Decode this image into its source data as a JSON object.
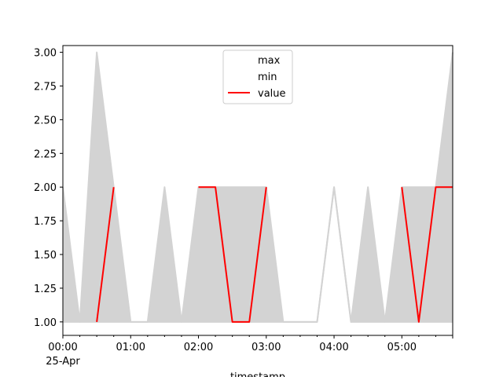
{
  "chart_data": {
    "type": "line",
    "xlabel": "timestamp",
    "x_ticks": [
      "00:00",
      "01:00",
      "02:00",
      "03:00",
      "04:00",
      "05:00"
    ],
    "x_tick_date": "25-Apr",
    "x": [
      "00:00",
      "00:15",
      "00:30",
      "00:45",
      "01:00",
      "01:15",
      "01:30",
      "01:45",
      "02:00",
      "02:15",
      "02:30",
      "02:45",
      "03:00",
      "03:15",
      "03:30",
      "03:45",
      "04:00",
      "04:15",
      "04:30",
      "04:45",
      "05:00",
      "05:15",
      "05:30",
      "05:45"
    ],
    "xlim": [
      "00:00",
      "05:45"
    ],
    "ylim": [
      0.9,
      3.05
    ],
    "y_ticks": [
      "1.00",
      "1.25",
      "1.50",
      "1.75",
      "2.00",
      "2.25",
      "2.50",
      "2.75",
      "3.00"
    ],
    "series": [
      {
        "name": "max",
        "color": "#d3d3d3",
        "values": [
          2,
          1,
          3,
          2,
          1,
          1,
          2,
          1,
          2,
          2,
          2,
          2,
          2,
          1,
          1,
          1,
          2,
          1,
          2,
          1,
          2,
          2,
          2,
          3
        ]
      },
      {
        "name": "min",
        "color": "#d3d3d3",
        "values": [
          1,
          1,
          1,
          1,
          1,
          1,
          1,
          1,
          1,
          1,
          1,
          1,
          1,
          1,
          1,
          1,
          2,
          1,
          1,
          1,
          1,
          1,
          1,
          1
        ]
      },
      {
        "name": "value",
        "color": "#ff0000",
        "values": [
          null,
          null,
          1,
          2,
          null,
          null,
          null,
          null,
          2,
          2,
          1,
          1,
          2,
          null,
          null,
          null,
          null,
          null,
          null,
          null,
          2,
          1,
          2,
          2
        ]
      }
    ],
    "fill_between": {
      "upper": "max",
      "lower": "min",
      "color": "#d3d3d3"
    },
    "legend": {
      "position": "top-center",
      "entries": [
        "max",
        "min",
        "value"
      ]
    },
    "grid": false
  }
}
